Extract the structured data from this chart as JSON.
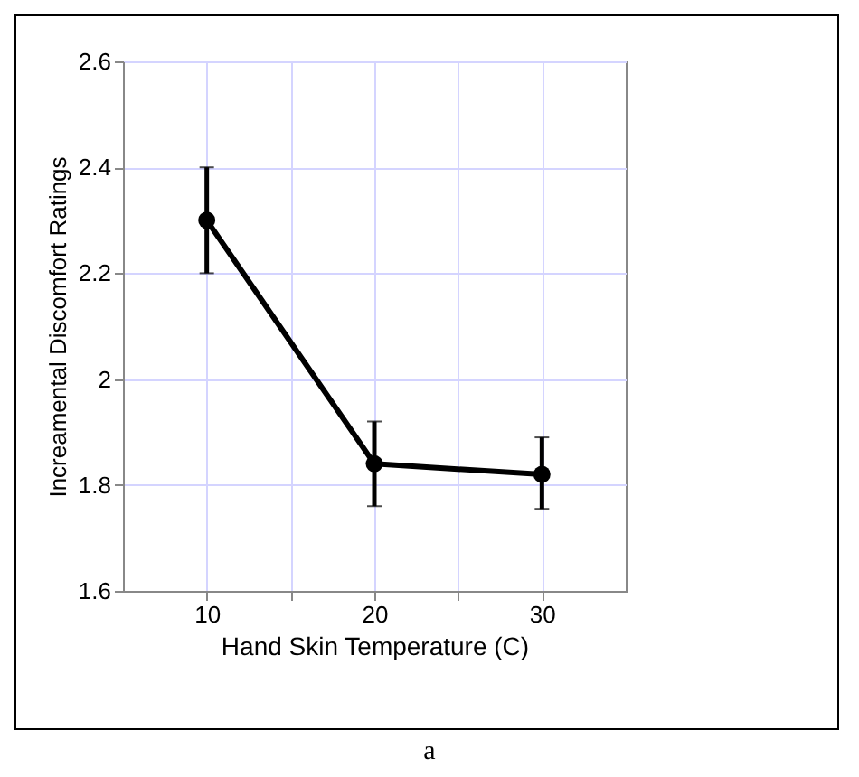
{
  "chart_data": {
    "type": "line",
    "xlabel": "Hand Skin Temperature (C)",
    "ylabel": "Increamental Discomfort Ratings",
    "x": [
      10,
      20,
      30
    ],
    "series": [
      {
        "color": "#000000",
        "values": [
          2.3,
          1.84,
          1.82
        ],
        "errors": [
          [
            2.2,
            2.4
          ],
          [
            1.76,
            1.92
          ],
          [
            1.755,
            1.89
          ]
        ]
      }
    ],
    "xlim": [
      5,
      35
    ],
    "xticks": [
      10,
      {
        "value": 15,
        "label": null
      },
      20,
      {
        "value": 25,
        "label": null
      },
      30
    ],
    "ylim": [
      1.6,
      2.6
    ],
    "yticks": [
      1.6,
      1.8,
      2,
      2.2,
      2.4,
      2.6
    ],
    "grid": true,
    "marker": "circle",
    "line_style": "solid",
    "annotations": [
      "a"
    ]
  }
}
